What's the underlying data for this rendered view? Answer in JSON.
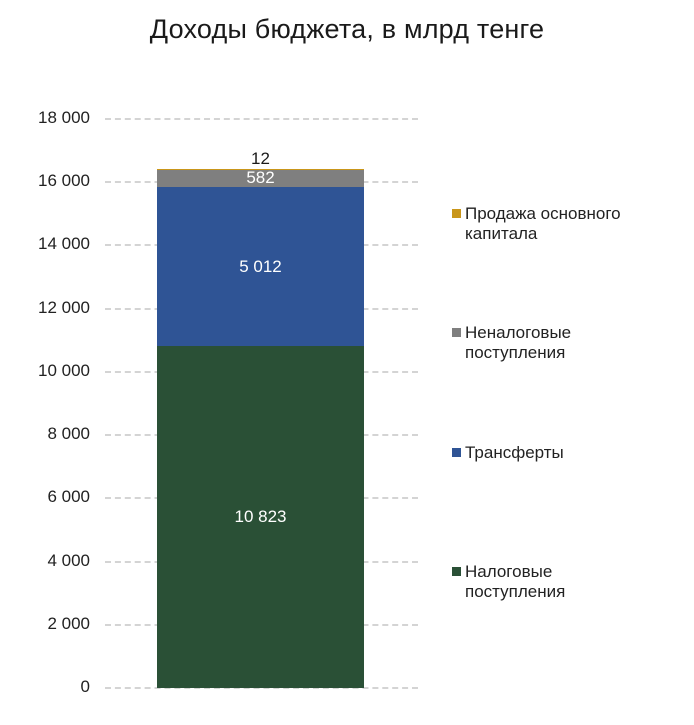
{
  "chart_data": {
    "type": "bar",
    "stacked": true,
    "title": "Доходы бюджета, в млрд тенге",
    "xlabel": "",
    "ylabel": "",
    "ylim": [
      0,
      18000
    ],
    "yticks": [
      0,
      2000,
      4000,
      6000,
      8000,
      10000,
      12000,
      14000,
      16000,
      18000
    ],
    "ytick_labels": [
      "0",
      "2 000",
      "4 000",
      "6 000",
      "8 000",
      "10 000",
      "12 000",
      "14 000",
      "16 000",
      "18 000"
    ],
    "grid": "horizontal dashed",
    "legend_position": "right",
    "categories": [
      ""
    ],
    "series": [
      {
        "name": "Налоговые поступления",
        "values": [
          10823
        ],
        "label": "10 823",
        "color": "#2a5036"
      },
      {
        "name": "Трансферты",
        "values": [
          5012
        ],
        "label": "5 012",
        "color": "#2f5495"
      },
      {
        "name": "Неналоговые поступления",
        "values": [
          582
        ],
        "label": "582",
        "color": "#7f7f7f"
      },
      {
        "name": "Продажа основного капитала",
        "values": [
          12
        ],
        "label": "12",
        "color": "#c9961a"
      }
    ]
  },
  "legend": [
    {
      "line1": "Продажа основного",
      "line2": "капитала",
      "color": "#c9961a"
    },
    {
      "line1": "Неналоговые",
      "line2": "поступления",
      "color": "#7f7f7f"
    },
    {
      "line1": "Трансферты",
      "line2": "",
      "color": "#2f5495"
    },
    {
      "line1": "Налоговые",
      "line2": "поступления",
      "color": "#2a5036"
    }
  ]
}
